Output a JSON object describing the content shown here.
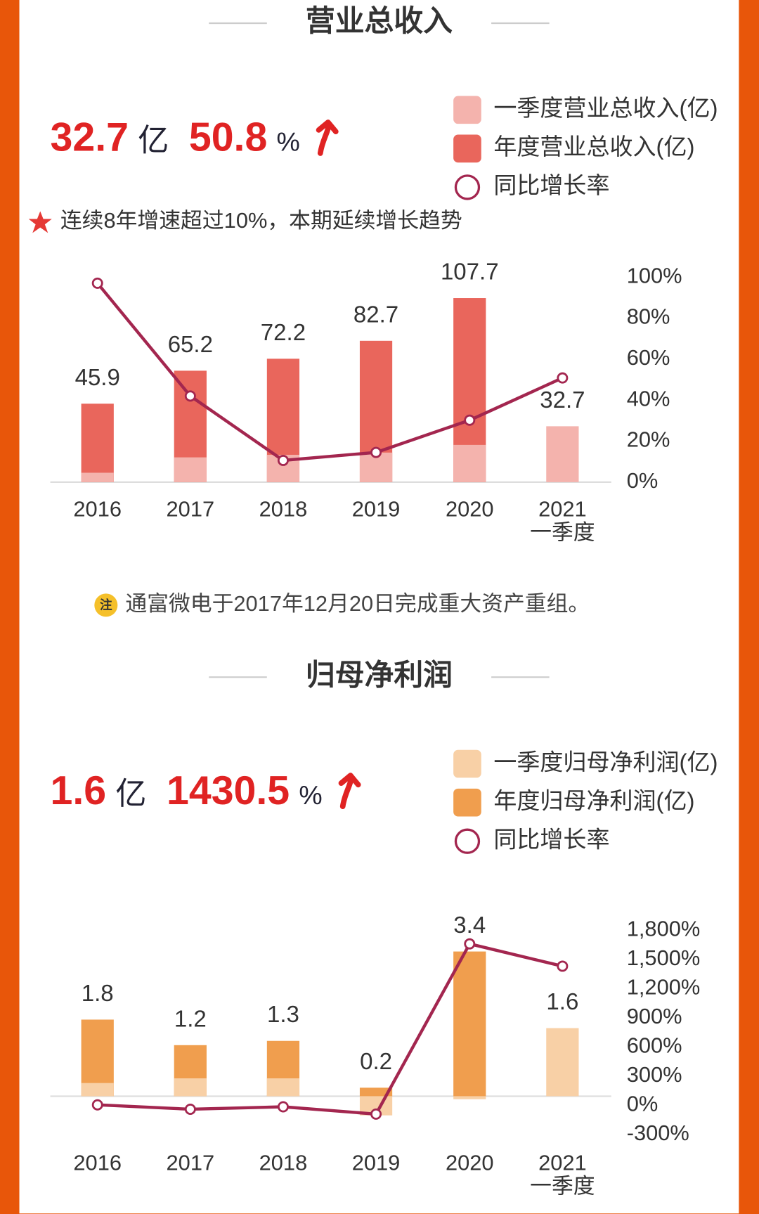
{
  "chart_data": [
    {
      "type": "bar",
      "title": "营业总收入",
      "headline": {
        "value": 32.7,
        "unit": "亿",
        "growth": 50.8,
        "growth_unit": "%"
      },
      "annotation": "连续8年增速超过10%，本期延续增长趋势",
      "categories": [
        "2016",
        "2017",
        "2018",
        "2019",
        "2020",
        "2021\n一季度"
      ],
      "series": [
        {
          "name": "一季度营业总收入(亿)",
          "color": "#f4b3ad",
          "values": [
            5.5,
            14.5,
            16,
            17.3,
            21.8,
            32.7
          ]
        },
        {
          "name": "年度营业总收入(亿)",
          "color": "#e9665c",
          "values": [
            45.9,
            65.2,
            72.2,
            82.7,
            107.7,
            null
          ]
        },
        {
          "name": "同比增长率",
          "color": "#a3264f",
          "type": "line",
          "axis": "y2",
          "values": [
            97,
            42,
            10.6,
            14.5,
            30.2,
            50.8
          ]
        }
      ],
      "ylim": [
        0,
        120
      ],
      "y2lim": [
        0,
        100
      ],
      "y2ticks": [
        {
          "value": 0,
          "label": "0%"
        },
        {
          "value": 20,
          "label": "20%"
        },
        {
          "value": 40,
          "label": "40%"
        },
        {
          "value": 60,
          "label": "60%"
        },
        {
          "value": 80,
          "label": "80%"
        },
        {
          "value": 100,
          "label": "100%"
        }
      ]
    },
    {
      "type": "bar",
      "title": "归母净利润",
      "headline": {
        "value": 1.6,
        "unit": "亿",
        "growth": 1430.5,
        "growth_unit": "%"
      },
      "categories": [
        "2016",
        "2017",
        "2018",
        "2019",
        "2020",
        "2021\n一季度"
      ],
      "series": [
        {
          "name": "一季度归母净利润(亿)",
          "color": "#f8d0a6",
          "values": [
            0.31,
            0.42,
            0.42,
            -0.45,
            -0.07,
            1.6
          ]
        },
        {
          "name": "年度归母净利润(亿)",
          "color": "#f09e4e",
          "values": [
            1.8,
            1.2,
            1.3,
            0.2,
            3.4,
            null
          ]
        },
        {
          "name": "同比增长率",
          "color": "#a3264f",
          "type": "line",
          "axis": "y2",
          "values": [
            5,
            -40,
            -15,
            -90,
            1660,
            1430.5
          ]
        }
      ],
      "ylim": [
        -0.9,
        3.9
      ],
      "y2lim": [
        -300,
        1800
      ],
      "y2ticks": [
        {
          "value": -300,
          "label": "-300%"
        },
        {
          "value": 0,
          "label": "0%"
        },
        {
          "value": 300,
          "label": "300%"
        },
        {
          "value": 600,
          "label": "600%"
        },
        {
          "value": 900,
          "label": "900%"
        },
        {
          "value": 1200,
          "label": "1,200%"
        },
        {
          "value": 1500,
          "label": "1,500%"
        },
        {
          "value": 1800,
          "label": "1,800%"
        }
      ]
    }
  ],
  "note": {
    "badge": "注",
    "text": "通富微电于2017年12月20日完成重大资产重组。"
  }
}
